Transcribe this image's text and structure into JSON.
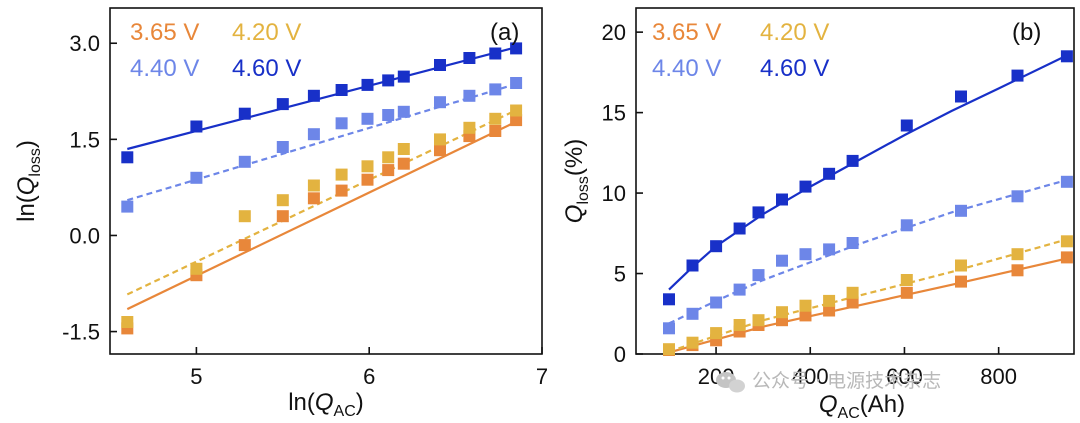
{
  "colors": {
    "v365": "#e8873a",
    "v420": "#e3b340",
    "v440": "#6d86e8",
    "v460": "#1830c8"
  },
  "watermark": {
    "text": "公众号 · 电源技术杂志",
    "icon": "wechat-icon"
  },
  "chart_data": [
    {
      "type": "scatter",
      "panel_label": "(a)",
      "xlabel": "ln(Q_AC)",
      "ylabel": "ln(Q_loss)",
      "xlim": [
        4.5,
        7.0
      ],
      "ylim": [
        -1.85,
        3.55
      ],
      "xticks": [
        5,
        6,
        7
      ],
      "yticks": [
        -1.5,
        0.0,
        1.5,
        3.0
      ],
      "xtick_labels": [
        "5",
        "6",
        "7"
      ],
      "ytick_labels": [
        "-1.5",
        "0.0",
        "1.5",
        "3.0"
      ],
      "legend": [
        "3.65 V",
        "4.20 V",
        "4.40 V",
        "4.60 V"
      ],
      "series": [
        {
          "name": "3.65 V",
          "color_key": "v365",
          "line_style": "solid",
          "x": [
            4.6,
            5.0,
            5.28,
            5.5,
            5.68,
            5.84,
            5.99,
            6.11,
            6.2,
            6.41,
            6.58,
            6.73,
            6.85
          ],
          "y": [
            -1.45,
            -0.62,
            -0.15,
            0.3,
            0.58,
            0.7,
            0.87,
            1.02,
            1.12,
            1.33,
            1.55,
            1.63,
            1.8
          ],
          "fit": [
            [
              4.6,
              -1.15
            ],
            [
              6.87,
              1.8
            ]
          ]
        },
        {
          "name": "4.20 V",
          "color_key": "v420",
          "line_style": "dashed",
          "x": [
            4.6,
            5.0,
            5.28,
            5.5,
            5.68,
            5.84,
            5.99,
            6.11,
            6.2,
            6.41,
            6.58,
            6.73,
            6.85
          ],
          "y": [
            -1.35,
            -0.52,
            0.3,
            0.55,
            0.78,
            0.95,
            1.08,
            1.22,
            1.35,
            1.5,
            1.68,
            1.82,
            1.95
          ],
          "fit": [
            [
              4.6,
              -0.92
            ],
            [
              6.87,
              1.98
            ]
          ]
        },
        {
          "name": "4.40 V",
          "color_key": "v440",
          "line_style": "dashed",
          "x": [
            4.6,
            5.0,
            5.28,
            5.5,
            5.68,
            5.84,
            5.99,
            6.11,
            6.2,
            6.41,
            6.58,
            6.73,
            6.85
          ],
          "y": [
            0.45,
            0.9,
            1.15,
            1.38,
            1.58,
            1.75,
            1.82,
            1.88,
            1.93,
            2.08,
            2.18,
            2.28,
            2.38
          ],
          "fit": [
            [
              4.6,
              0.55
            ],
            [
              6.87,
              2.38
            ]
          ]
        },
        {
          "name": "4.60 V",
          "color_key": "v460",
          "line_style": "solid",
          "x": [
            4.6,
            5.0,
            5.28,
            5.5,
            5.68,
            5.84,
            5.99,
            6.11,
            6.2,
            6.41,
            6.58,
            6.73,
            6.85
          ],
          "y": [
            1.22,
            1.7,
            1.9,
            2.05,
            2.18,
            2.27,
            2.35,
            2.42,
            2.48,
            2.66,
            2.77,
            2.84,
            2.92
          ],
          "fit": [
            [
              4.6,
              1.35
            ],
            [
              6.87,
              2.95
            ]
          ]
        }
      ]
    },
    {
      "type": "scatter",
      "panel_label": "(b)",
      "xlabel": "Q_AC(Ah)",
      "ylabel": "Q_loss(%)",
      "xlim": [
        30,
        960
      ],
      "ylim": [
        0,
        21.5
      ],
      "xticks": [
        200,
        400,
        600,
        800
      ],
      "yticks": [
        0,
        5,
        10,
        15,
        20
      ],
      "xtick_labels": [
        "200",
        "400",
        "600",
        "800"
      ],
      "ytick_labels": [
        "0",
        "5",
        "10",
        "15",
        "20"
      ],
      "legend": [
        "3.65 V",
        "4.20 V",
        "4.40 V",
        "4.60 V"
      ],
      "series": [
        {
          "name": "3.65 V",
          "color_key": "v365",
          "line_style": "solid",
          "x": [
            100,
            150,
            200,
            250,
            290,
            340,
            390,
            440,
            490,
            605,
            720,
            840,
            945
          ],
          "y": [
            0.25,
            0.55,
            0.85,
            1.4,
            1.8,
            2.1,
            2.4,
            2.7,
            3.2,
            3.8,
            4.5,
            5.2,
            6.0
          ],
          "fit": [
            [
              100,
              0.1
            ],
            [
              300,
              1.7
            ],
            [
              500,
              3.0
            ],
            [
              700,
              4.3
            ],
            [
              955,
              6.0
            ]
          ]
        },
        {
          "name": "4.20 V",
          "color_key": "v420",
          "line_style": "dashed",
          "x": [
            100,
            150,
            200,
            250,
            290,
            340,
            390,
            440,
            490,
            605,
            720,
            840,
            945
          ],
          "y": [
            0.3,
            0.7,
            1.3,
            1.8,
            2.1,
            2.6,
            3.0,
            3.3,
            3.8,
            4.6,
            5.5,
            6.2,
            7.0
          ],
          "fit": [
            [
              100,
              0.15
            ],
            [
              300,
              2.1
            ],
            [
              500,
              3.6
            ],
            [
              700,
              5.1
            ],
            [
              955,
              7.2
            ]
          ]
        },
        {
          "name": "4.40 V",
          "color_key": "v440",
          "line_style": "dashed",
          "x": [
            100,
            150,
            200,
            250,
            290,
            340,
            390,
            440,
            490,
            605,
            720,
            840,
            945
          ],
          "y": [
            1.6,
            2.5,
            3.2,
            4.0,
            4.9,
            5.8,
            6.2,
            6.5,
            6.9,
            8.0,
            8.9,
            9.8,
            10.7
          ],
          "fit": [
            [
              100,
              1.9
            ],
            [
              200,
              3.3
            ],
            [
              300,
              4.6
            ],
            [
              500,
              6.8
            ],
            [
              700,
              8.8
            ],
            [
              955,
              10.9
            ]
          ]
        },
        {
          "name": "4.60 V",
          "color_key": "v460",
          "line_style": "solid",
          "x": [
            100,
            150,
            200,
            250,
            290,
            340,
            390,
            440,
            490,
            605,
            720,
            840,
            945
          ],
          "y": [
            3.4,
            5.5,
            6.7,
            7.8,
            8.8,
            9.6,
            10.4,
            11.2,
            12.0,
            14.2,
            16.0,
            17.3,
            18.5
          ],
          "fit": [
            [
              100,
              4.0
            ],
            [
              150,
              5.4
            ],
            [
              200,
              6.7
            ],
            [
              300,
              8.7
            ],
            [
              400,
              10.4
            ],
            [
              500,
              12.0
            ],
            [
              600,
              13.6
            ],
            [
              700,
              15.1
            ],
            [
              800,
              16.5
            ],
            [
              955,
              18.7
            ]
          ]
        }
      ]
    }
  ]
}
